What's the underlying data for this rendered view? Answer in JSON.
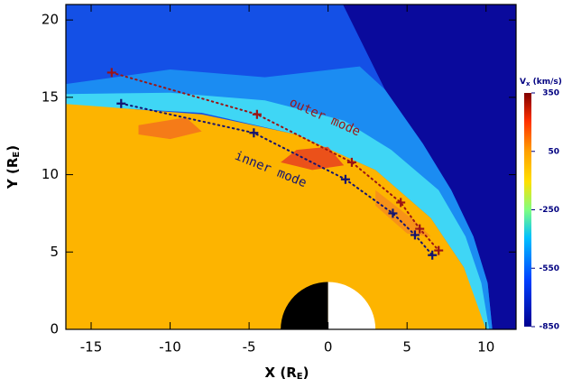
{
  "chart_data": {
    "type": "scatter",
    "xlabel": {
      "main": "X (R",
      "sub": "E",
      "end": ")"
    },
    "ylabel": {
      "main": "Y (R",
      "sub": "E",
      "end": ")"
    },
    "xlim": [
      -16.6,
      11.9
    ],
    "xticks": [
      -15,
      -10,
      -5,
      0,
      5,
      10
    ],
    "ylim": [
      0,
      21
    ],
    "yticks": [
      0,
      5,
      10,
      15,
      20
    ],
    "series": [
      {
        "name": "outer mode",
        "color": "#9a1515",
        "x": [
          -13.7,
          -4.5,
          1.5,
          4.6,
          5.8,
          7.0
        ],
        "values": [
          16.6,
          13.9,
          10.8,
          8.2,
          6.5,
          5.1
        ]
      },
      {
        "name": "inner mode",
        "color": "#141470",
        "x": [
          -13.1,
          -4.7,
          1.1,
          4.1,
          5.5,
          6.6
        ],
        "values": [
          14.6,
          12.7,
          9.7,
          7.5,
          6.1,
          4.8
        ]
      }
    ],
    "colorbar": {
      "label": {
        "main": "V",
        "sub": "x",
        "end": " (km/s)"
      },
      "lim": [
        -850,
        350
      ],
      "ticks": [
        350,
        50,
        -250,
        -550,
        -850
      ]
    }
  }
}
